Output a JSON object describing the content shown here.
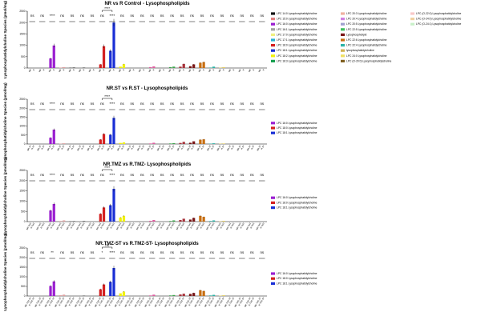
{
  "chart_data": [
    {
      "type": "bar",
      "title": "NR vs R Control - Lysophospholipids",
      "ylabel": "Lysophosphatidylcholine Species (pmol/mg)",
      "yticks": [
        "2500",
        "2000",
        "1500",
        "1000",
        "500",
        "0"
      ],
      "ylim": [
        0,
        2500
      ],
      "xtick_labels": [
        "NR",
        "R"
      ],
      "n_groups": 24,
      "series": [
        {
          "group": 2,
          "color": "#9b1fd1",
          "values": [
            420,
            990
          ]
        },
        {
          "group": 3,
          "color": "#e0a0a0",
          "values": [
            20,
            40
          ]
        },
        {
          "group": 4,
          "color": "#222222",
          "values": [
            10,
            20
          ]
        },
        {
          "group": 5,
          "color": "#7f7f7f",
          "values": [
            10,
            30
          ]
        },
        {
          "group": 7,
          "color": "#d42020",
          "values": [
            160,
            960
          ]
        },
        {
          "group": 8,
          "color": "#1a2fd6",
          "values": [
            760,
            2000
          ]
        },
        {
          "group": 9,
          "color": "#f2f20a",
          "values": [
            60,
            170
          ]
        },
        {
          "group": 12,
          "color": "#e05ca0",
          "values": [
            40,
            70
          ]
        },
        {
          "group": 14,
          "color": "#3aa64a",
          "values": [
            40,
            60
          ]
        },
        {
          "group": 15,
          "color": "#a8323a",
          "values": [
            60,
            180
          ]
        },
        {
          "group": 16,
          "color": "#7a1515",
          "values": [
            80,
            160
          ]
        },
        {
          "group": 17,
          "color": "#c86e10",
          "values": [
            230,
            260
          ]
        },
        {
          "group": 18,
          "color": "#2bb3a6",
          "values": [
            20,
            60
          ]
        },
        {
          "group": 19,
          "color": "#e8d060",
          "values": [
            20,
            40
          ]
        }
      ],
      "significance": [
        "ns",
        "ns",
        "****",
        "ns",
        "ns",
        "ns",
        "ns",
        "ns",
        "****",
        "ns",
        "ns",
        "ns",
        "ns",
        "ns",
        "ns",
        "ns",
        "ns",
        "ns",
        "ns",
        "ns",
        "ns",
        "ns",
        "ns",
        "ns"
      ],
      "bracket_label": "****",
      "legend": [
        {
          "label": "LPC 14:0 Lysophosphatidylcholine",
          "color": "#111111"
        },
        {
          "label": "LPC 15:0 Lysophosphatidylcholine",
          "color": "#e08080"
        },
        {
          "label": "LPC 16:0 Lysophosphatidylcholine",
          "color": "#9b1fd1"
        },
        {
          "label": "LPC 16:1 Lysophosphatidylcholine",
          "color": "#a0a0a0"
        },
        {
          "label": "LPC 17:0 Lysophosphatidylcholine",
          "color": "#f0f080"
        },
        {
          "label": "LPC 17:1 Lysophosphatidylcholine",
          "color": "#2ab0d0"
        },
        {
          "label": "LPC 18:0 Lysophosphatidylcholine",
          "color": "#d42020"
        },
        {
          "label": "LPC 18:1 Lysophosphatidylcholine",
          "color": "#1a2fd6"
        },
        {
          "label": "LPC 18:2 Lysophosphatidylcholine",
          "color": "#f2f20a"
        },
        {
          "label": "LPC 18:3 Lysophosphatidylcholine",
          "color": "#18a050"
        },
        {
          "label": "LPC 20:3 Lysophosphatidylcholine",
          "color": "#f0b0a0"
        },
        {
          "label": "LPC 20:4 Lysophosphatidylcholine",
          "color": "#d080e0"
        },
        {
          "label": "LPC 20:5 Lysophosphatidylcholine",
          "color": "#a0a0d0"
        },
        {
          "label": "LPC 22:5 Lysophosphatidylcholine",
          "color": "#40c060"
        },
        {
          "label": "Lysophospholipid",
          "color": "#7a1515"
        },
        {
          "label": "LPC 22:6 Lysophosphatidylcholine",
          "color": "#c86e10"
        },
        {
          "label": "LPC 22:4 Lysophosphatidylcholine",
          "color": "#2bb3a6"
        },
        {
          "label": "lysophosphatidylcholine",
          "color": "#d0b050"
        },
        {
          "label": "LPC 24:0 Lysophosphatidylcholine",
          "color": "#f0e060"
        },
        {
          "label": "LPC (O-20:0) Lysophosphatidylcholine",
          "color": "#806020"
        },
        {
          "label": "LPC (O-22:0) Lysophosphatidylcholine",
          "color": "#f8c8c8"
        },
        {
          "label": "LPC (O-24:0) Lysophosphatidylcholine",
          "color": "#f0d0a0"
        },
        {
          "label": "LPC (O-24:1) Lysophosphatidylcholine",
          "color": "#c8f0c8"
        }
      ]
    },
    {
      "type": "bar",
      "title": "NR.ST vs R.ST - Lysophospholipids",
      "ylabel": "Lysophosphatidylcholine Species (pmol/mg)",
      "yticks": [
        "2500",
        "2000",
        "1500",
        "1000",
        "500",
        "0"
      ],
      "ylim": [
        0,
        2500
      ],
      "xtick_labels": [
        "NR.ST",
        "R.ST"
      ],
      "n_groups": 24,
      "series": [
        {
          "group": 2,
          "color": "#9b1fd1",
          "values": [
            350,
            800
          ]
        },
        {
          "group": 3,
          "color": "#e0a0a0",
          "values": [
            20,
            40
          ]
        },
        {
          "group": 5,
          "color": "#7f7f7f",
          "values": [
            10,
            20
          ]
        },
        {
          "group": 7,
          "color": "#d42020",
          "values": [
            250,
            560
          ]
        },
        {
          "group": 8,
          "color": "#1a2fd6",
          "values": [
            520,
            1460
          ]
        },
        {
          "group": 9,
          "color": "#f2f20a",
          "values": [
            60,
            90
          ]
        },
        {
          "group": 12,
          "color": "#e05ca0",
          "values": [
            30,
            70
          ]
        },
        {
          "group": 14,
          "color": "#3aa64a",
          "values": [
            30,
            50
          ]
        },
        {
          "group": 15,
          "color": "#a8323a",
          "values": [
            60,
            120
          ]
        },
        {
          "group": 16,
          "color": "#7a1515",
          "values": [
            70,
            150
          ]
        },
        {
          "group": 17,
          "color": "#c86e10",
          "values": [
            240,
            260
          ]
        },
        {
          "group": 18,
          "color": "#2bb3a6",
          "values": [
            20,
            40
          ]
        },
        {
          "group": 19,
          "color": "#e8d060",
          "values": [
            20,
            30
          ]
        }
      ],
      "significance": [
        "ns",
        "ns",
        "****",
        "ns",
        "ns",
        "ns",
        "ns",
        "ns",
        "****",
        "ns",
        "ns",
        "ns",
        "ns",
        "ns",
        "ns",
        "ns",
        "ns",
        "ns",
        "ns",
        "ns",
        "ns",
        "ns",
        "ns",
        "ns"
      ],
      "bracket_label": "****",
      "legend": [
        {
          "label": "LPC 16:0 Lysophosphatidylcholine",
          "color": "#9b1fd1"
        },
        {
          "label": "LPC 18:0 Lysophosphatidylcholine",
          "color": "#d42020"
        },
        {
          "label": "LPC 18:1 Lysophosphatidylcholine",
          "color": "#1a2fd6"
        }
      ]
    },
    {
      "type": "bar",
      "title": "NR.TMZ vs R.TMZ- Lysophospholipids",
      "ylabel": "Lysophosphatidylcholine Species (pmol/mg)",
      "yticks": [
        "2500",
        "2000",
        "1500",
        "1000",
        "500",
        "0"
      ],
      "ylim": [
        0,
        2500
      ],
      "xtick_labels": [
        "NR.TMZ",
        "R.TMZ"
      ],
      "n_groups": 24,
      "series": [
        {
          "group": 2,
          "color": "#9b1fd1",
          "values": [
            540,
            860
          ]
        },
        {
          "group": 3,
          "color": "#e0a0a0",
          "values": [
            30,
            60
          ]
        },
        {
          "group": 4,
          "color": "#222222",
          "values": [
            10,
            20
          ]
        },
        {
          "group": 5,
          "color": "#7f7f7f",
          "values": [
            20,
            40
          ]
        },
        {
          "group": 7,
          "color": "#d42020",
          "values": [
            380,
            690
          ]
        },
        {
          "group": 8,
          "color": "#1a2fd6",
          "values": [
            800,
            1600
          ]
        },
        {
          "group": 9,
          "color": "#f2f20a",
          "values": [
            200,
            280
          ]
        },
        {
          "group": 12,
          "color": "#e05ca0",
          "values": [
            40,
            80
          ]
        },
        {
          "group": 14,
          "color": "#3aa64a",
          "values": [
            30,
            60
          ]
        },
        {
          "group": 15,
          "color": "#a8323a",
          "values": [
            80,
            140
          ]
        },
        {
          "group": 16,
          "color": "#7a1515",
          "values": [
            100,
            180
          ]
        },
        {
          "group": 17,
          "color": "#c86e10",
          "values": [
            280,
            230
          ]
        },
        {
          "group": 18,
          "color": "#2bb3a6",
          "values": [
            30,
            60
          ]
        },
        {
          "group": 19,
          "color": "#e8d060",
          "values": [
            20,
            40
          ]
        }
      ],
      "significance": [
        "ns",
        "ns",
        "****",
        "ns",
        "ns",
        "ns",
        "ns",
        "ns",
        "****",
        "ns",
        "ns",
        "ns",
        "ns",
        "ns",
        "ns",
        "ns",
        "ns",
        "ns",
        "ns",
        "ns",
        "ns",
        "ns",
        "ns",
        "ns"
      ],
      "bracket_label": "****",
      "legend": [
        {
          "label": "LPC 16:0 Lysophosphatidylcholine",
          "color": "#9b1fd1"
        },
        {
          "label": "LPC 18:0 Lysophosphatidylcholine",
          "color": "#d42020"
        },
        {
          "label": "LPC 18:1 Lysophosphatidylcholine",
          "color": "#1a2fd6"
        }
      ]
    },
    {
      "type": "bar",
      "title": "NR.TMZ-ST vs R.TMZ-ST- Lysophospholipids",
      "ylabel": "Lysophosphatidylcholine Species (pmol/mg)",
      "yticks": [
        "2500",
        "2000",
        "1500",
        "1000",
        "500",
        "0"
      ],
      "ylim": [
        0,
        2500
      ],
      "xtick_labels": [
        "NR.TMZ-ST",
        "R.TMZ-ST"
      ],
      "n_groups": 24,
      "series": [
        {
          "group": 2,
          "color": "#9b1fd1",
          "values": [
            520,
            760
          ]
        },
        {
          "group": 3,
          "color": "#e0a0a0",
          "values": [
            40,
            70
          ]
        },
        {
          "group": 5,
          "color": "#7f7f7f",
          "values": [
            20,
            30
          ]
        },
        {
          "group": 7,
          "color": "#d42020",
          "values": [
            350,
            600
          ]
        },
        {
          "group": 8,
          "color": "#1a2fd6",
          "values": [
            740,
            1460
          ]
        },
        {
          "group": 9,
          "color": "#f2f20a",
          "values": [
            140,
            230
          ]
        },
        {
          "group": 12,
          "color": "#e05ca0",
          "values": [
            30,
            70
          ]
        },
        {
          "group": 14,
          "color": "#3aa64a",
          "values": [
            30,
            50
          ]
        },
        {
          "group": 15,
          "color": "#a8323a",
          "values": [
            80,
            120
          ]
        },
        {
          "group": 16,
          "color": "#7a1515",
          "values": [
            110,
            160
          ]
        },
        {
          "group": 17,
          "color": "#c86e10",
          "values": [
            300,
            260
          ]
        },
        {
          "group": 18,
          "color": "#2bb3a6",
          "values": [
            30,
            60
          ]
        },
        {
          "group": 19,
          "color": "#e8d060",
          "values": [
            20,
            40
          ]
        }
      ],
      "significance": [
        "ns",
        "ns",
        "**",
        "ns",
        "ns",
        "ns",
        "ns",
        "*",
        "****",
        "ns",
        "ns",
        "ns",
        "ns",
        "ns",
        "ns",
        "ns",
        "ns",
        "ns",
        "ns",
        "ns",
        "ns",
        "ns",
        "ns",
        "ns"
      ],
      "bracket_label": "ns",
      "legend": [
        {
          "label": "LPC 16:0 Lysophosphatidylcholine",
          "color": "#9b1fd1"
        },
        {
          "label": "LPC 18:0 Lysophosphatidylcholine",
          "color": "#d42020"
        },
        {
          "label": "LPC 18:1 Lysophosphatidylcholine",
          "color": "#1a2fd6"
        }
      ]
    }
  ]
}
